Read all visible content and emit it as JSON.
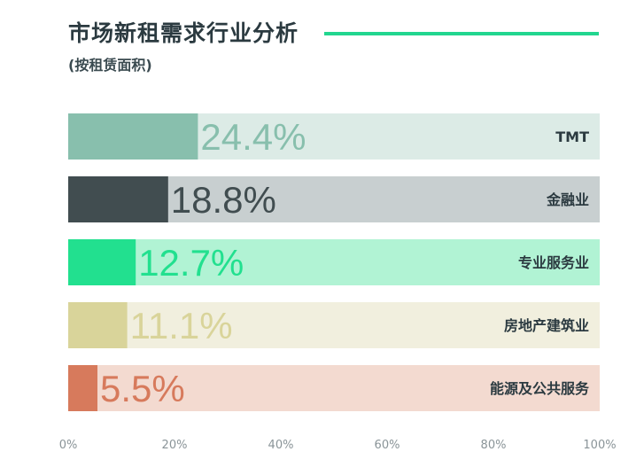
{
  "header": {
    "title": "市场新租需求行业分析",
    "subtitle": "(按租赁面积)"
  },
  "chart_data": {
    "type": "bar",
    "orientation": "horizontal",
    "categories": [
      "TMT",
      "金融业",
      "专业服务业",
      "房地产建筑业",
      "能源及公共服务"
    ],
    "values": [
      24.4,
      18.8,
      12.7,
      11.1,
      5.5
    ],
    "data_labels": [
      "24.4%",
      "18.8%",
      "12.7%",
      "11.1%",
      "5.5%"
    ],
    "colors": {
      "fill": [
        "#88bfad",
        "#414d50",
        "#22e08f",
        "#d9d49a",
        "#d77a5c"
      ],
      "track": [
        "#dcebe6",
        "#c8cfd0",
        "#b1f3d4",
        "#f1efde",
        "#f3dad0"
      ],
      "label": [
        "#88bfad",
        "#414d50",
        "#22e08f",
        "#d9d49a",
        "#d77a5c"
      ],
      "accent_rule": "#22d68f"
    },
    "xlim": [
      0,
      100
    ],
    "x_ticks": [
      "0%",
      "20%",
      "40%",
      "60%",
      "80%",
      "100%"
    ],
    "x_tick_values": [
      0,
      20,
      40,
      60,
      80,
      100
    ],
    "grid": false
  }
}
